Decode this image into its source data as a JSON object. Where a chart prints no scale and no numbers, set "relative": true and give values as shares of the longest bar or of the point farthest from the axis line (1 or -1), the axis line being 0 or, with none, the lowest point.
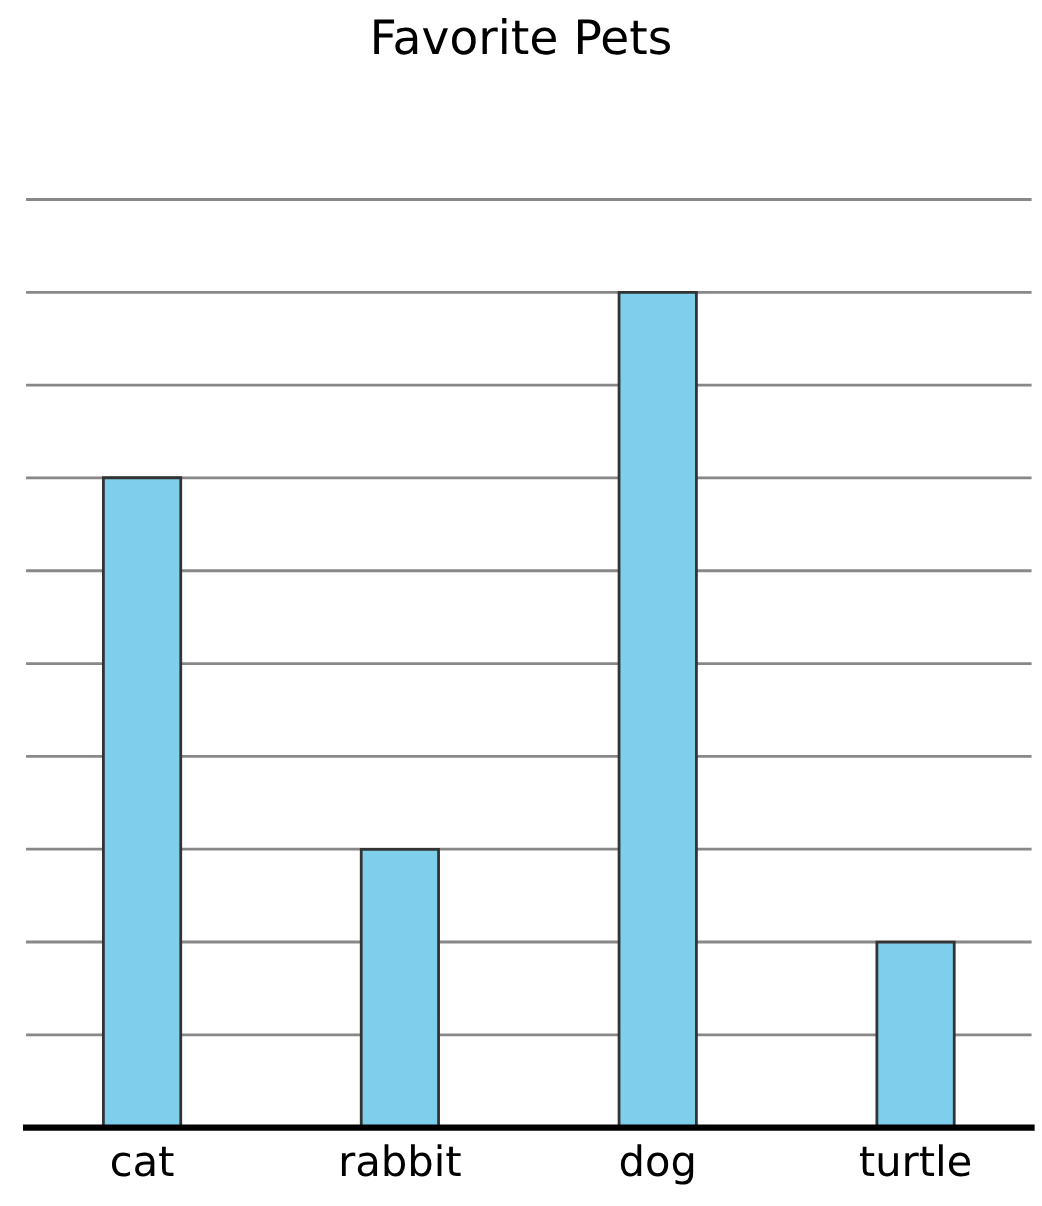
{
  "chart_data": {
    "type": "bar",
    "title": "Favorite Pets",
    "categories": [
      "cat",
      "rabbit",
      "dog",
      "turtle"
    ],
    "values": [
      0.778,
      0.333,
      1,
      0.222
    ],
    "color": "#7fcfec",
    "relative": true,
    "grid": "y"
  }
}
